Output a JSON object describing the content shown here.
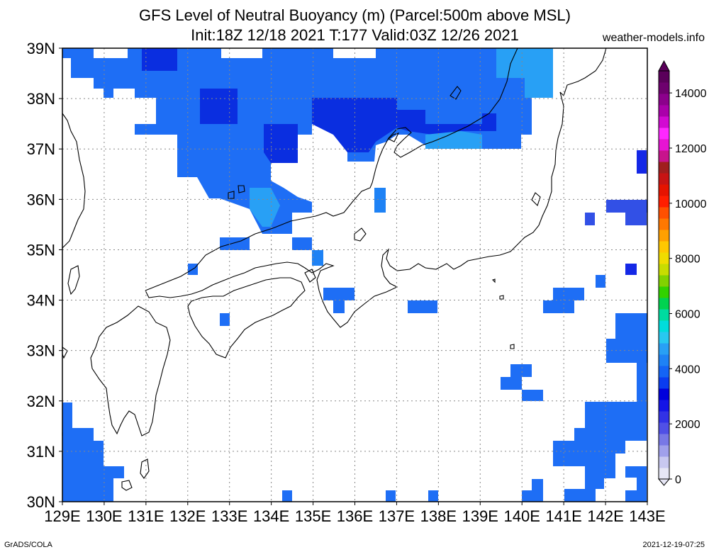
{
  "title_line1": "GFS Level of Neutral Buoyancy (m) (Parcel:500m above MSL)",
  "title_line2": "Init:18Z 12/18 2021 T:177 Valid:03Z 12/26 2021",
  "credit": "weather-models.info",
  "footer_left": "GrADS/COLA",
  "footer_right": "2021-12-19-07:25",
  "map": {
    "lon_range": [
      129,
      143
    ],
    "lat_range": [
      30,
      39
    ],
    "lon_labels": [
      "129E",
      "130E",
      "131E",
      "132E",
      "133E",
      "134E",
      "135E",
      "136E",
      "137E",
      "138E",
      "139E",
      "140E",
      "141E",
      "142E",
      "143E"
    ],
    "lat_labels": [
      "30N",
      "31N",
      "32N",
      "33N",
      "34N",
      "35N",
      "36N",
      "37N",
      "38N",
      "39N"
    ],
    "grid": true
  },
  "colorbar": {
    "unit": "m",
    "labels": [
      "0",
      "2000",
      "4000",
      "6000",
      "8000",
      "10000",
      "12000",
      "14000"
    ],
    "colors": [
      "#e6e6f5",
      "#c8c8f0",
      "#a0a0eb",
      "#7878e6",
      "#5050e6",
      "#3232e6",
      "#1414e6",
      "#0000dc",
      "#0a3cf0",
      "#1464f5",
      "#1e82f5",
      "#28a0f5",
      "#28c8f0",
      "#00dcdc",
      "#00dca0",
      "#00d250",
      "#32d200",
      "#82d200",
      "#c8dc00",
      "#f0dc00",
      "#ffc800",
      "#ffa000",
      "#ff7800",
      "#ff5000",
      "#ff1e00",
      "#e61400",
      "#c81414",
      "#a01e1e",
      "#c8148c",
      "#e614d2",
      "#ff28ff",
      "#d20ad2",
      "#aa00aa",
      "#8c008c",
      "#6e006e",
      "#5a005a"
    ]
  }
}
